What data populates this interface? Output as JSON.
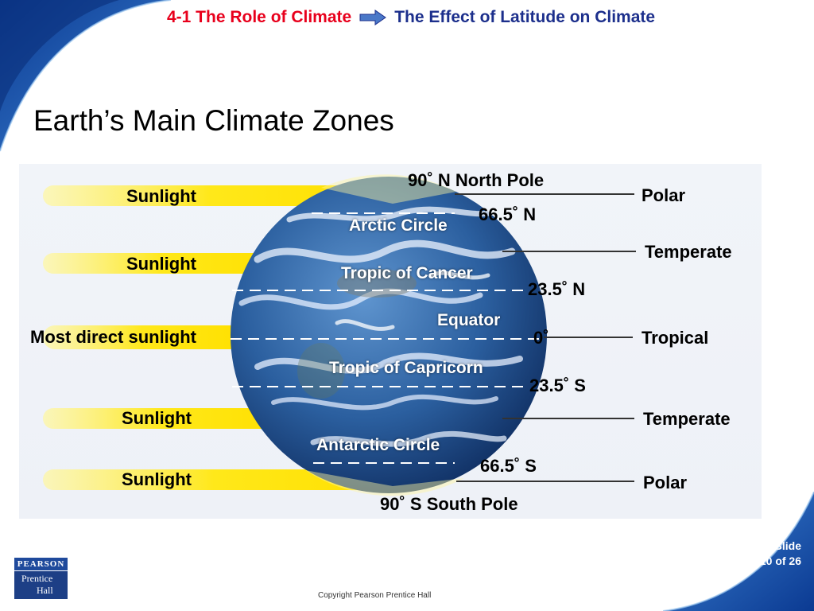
{
  "header": {
    "section": "4-1 The Role of Climate",
    "topic": "The Effect of Latitude on Climate"
  },
  "title": "Earth’s Main Climate Zones",
  "diagram": {
    "sunlight_labels": [
      "Sunlight",
      "Sunlight",
      "Most direct sunlight",
      "Sunlight",
      "Sunlight"
    ],
    "latitude_labels": {
      "north_pole": "90˚  N North Pole",
      "arctic_value": "66.5˚  N",
      "tropic_cancer_value": "23.5˚  N",
      "equator_value": "0˚",
      "tropic_capricorn_value": "23.5˚  S",
      "antarctic_value": "66.5˚  S",
      "south_pole": "90˚  S South Pole"
    },
    "circle_labels": {
      "arctic": "Arctic Circle",
      "tropic_cancer": "Tropic of Cancer",
      "equator": "Equator",
      "tropic_capricorn": "Tropic of Capricorn",
      "antarctic": "Antarctic Circle"
    },
    "zones": [
      "Polar",
      "Temperate",
      "Tropical",
      "Temperate",
      "Polar"
    ],
    "colors": {
      "sunlight": "#ffe81a",
      "ocean": "#1f4f8f",
      "header_red": "#e8001c",
      "header_blue": "#1c2f8c"
    }
  },
  "footer": {
    "logo_top": "PEARSON",
    "logo_line2": "Prentice",
    "logo_line3": "Hall",
    "copyright": "Copyright Pearson Prentice Hall",
    "slide_label": "Slide",
    "slide_count": "10 of 26"
  }
}
